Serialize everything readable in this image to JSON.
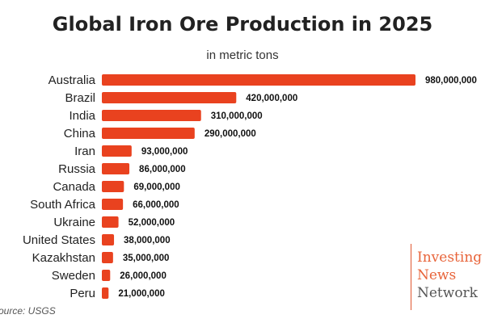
{
  "chart_data": {
    "type": "bar",
    "orientation": "horizontal",
    "title": "Global Iron Ore Production in 2025",
    "subtitle": "in metric tons",
    "categories": [
      "Australia",
      "Brazil",
      "India",
      "China",
      "Iran",
      "Russia",
      "Canada",
      "South Africa",
      "Ukraine",
      "United States",
      "Kazakhstan",
      "Sweden",
      "Peru"
    ],
    "values": [
      980000000,
      420000000,
      310000000,
      290000000,
      93000000,
      86000000,
      69000000,
      66000000,
      52000000,
      38000000,
      35000000,
      26000000,
      21000000
    ],
    "data_labels": [
      "980,000,000",
      "420,000,000",
      "310,000,000",
      "290,000,000",
      "93,000,000",
      "86,000,000",
      "69,000,000",
      "66,000,000",
      "52,000,000",
      "38,000,000",
      "35,000,000",
      "26,000,000",
      "21,000,000"
    ],
    "xlim": [
      0,
      980000000
    ],
    "grid": false,
    "bar_color": "#e9421f"
  },
  "source": "ource: USGS",
  "logo": {
    "line1": "Investing",
    "line2": "News",
    "line3": "Network"
  }
}
